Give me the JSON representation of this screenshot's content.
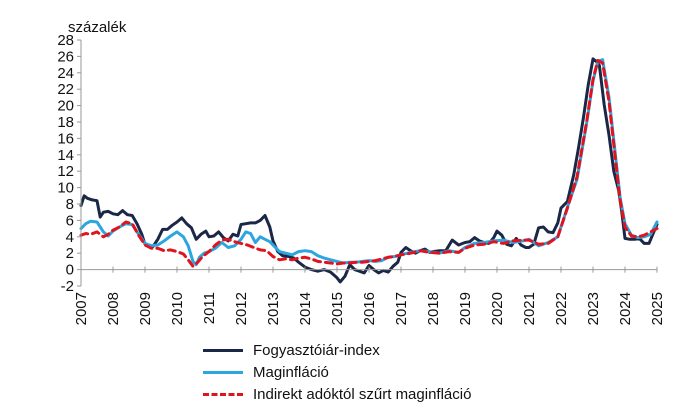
{
  "chart_data": {
    "type": "line",
    "ylabel": "százalék",
    "ylim": [
      -2,
      28
    ],
    "yticks": [
      "-2",
      "0",
      "2",
      "4",
      "6",
      "8",
      "10",
      "12",
      "14",
      "16",
      "18",
      "20",
      "22",
      "24",
      "26",
      "28"
    ],
    "xlim": [
      2007,
      2025
    ],
    "xticks": [
      "2007",
      "2008",
      "2009",
      "2010",
      "2011",
      "2012",
      "2013",
      "2014",
      "2015",
      "2016",
      "2017",
      "2018",
      "2019",
      "2020",
      "2021",
      "2022",
      "2023",
      "2024",
      "2025"
    ],
    "grid": false,
    "legend_position": "bottom",
    "series": [
      {
        "name": "Fogyasztóiár-index",
        "color": "#1b2747",
        "style": "solid",
        "x": [
          2007.0,
          2007.1,
          2007.2,
          2007.35,
          2007.5,
          2007.6,
          2007.7,
          2007.85,
          2008.0,
          2008.15,
          2008.3,
          2008.45,
          2008.6,
          2008.75,
          2008.9,
          2009.0,
          2009.1,
          2009.25,
          2009.4,
          2009.55,
          2009.7,
          2009.85,
          2010.0,
          2010.15,
          2010.3,
          2010.45,
          2010.6,
          2010.75,
          2010.9,
          2011.0,
          2011.15,
          2011.3,
          2011.45,
          2011.6,
          2011.75,
          2011.9,
          2012.0,
          2012.15,
          2012.3,
          2012.45,
          2012.6,
          2012.75,
          2012.9,
          2013.0,
          2013.15,
          2013.3,
          2013.5,
          2013.65,
          2013.8,
          2014.0,
          2014.2,
          2014.4,
          2014.6,
          2014.8,
          2015.0,
          2015.1,
          2015.25,
          2015.4,
          2015.55,
          2015.7,
          2015.85,
          2016.0,
          2016.15,
          2016.3,
          2016.45,
          2016.6,
          2016.75,
          2016.9,
          2017.0,
          2017.15,
          2017.3,
          2017.45,
          2017.6,
          2017.75,
          2017.9,
          2018.0,
          2018.2,
          2018.4,
          2018.6,
          2018.8,
          2019.0,
          2019.15,
          2019.3,
          2019.45,
          2019.6,
          2019.75,
          2019.9,
          2020.0,
          2020.15,
          2020.3,
          2020.45,
          2020.6,
          2020.75,
          2020.9,
          2021.0,
          2021.15,
          2021.3,
          2021.45,
          2021.6,
          2021.75,
          2021.9,
          2022.0,
          2022.2,
          2022.4,
          2022.55,
          2022.7,
          2022.85,
          2023.0,
          2023.1,
          2023.2,
          2023.35,
          2023.5,
          2023.65,
          2023.8,
          2023.9,
          2024.0,
          2024.15,
          2024.3,
          2024.45,
          2024.6,
          2024.75,
          2024.9,
          2025.0
        ],
        "y": [
          7.8,
          9.0,
          8.7,
          8.5,
          8.4,
          6.4,
          7.0,
          7.1,
          6.8,
          6.7,
          7.2,
          6.7,
          6.6,
          5.6,
          4.3,
          3.1,
          3.0,
          2.8,
          3.7,
          4.9,
          4.9,
          5.4,
          5.8,
          6.3,
          5.6,
          5.1,
          3.7,
          4.3,
          4.7,
          4.0,
          4.1,
          4.6,
          3.9,
          3.5,
          4.3,
          4.1,
          5.5,
          5.6,
          5.7,
          5.7,
          6.0,
          6.6,
          5.2,
          3.5,
          2.2,
          1.7,
          1.6,
          1.4,
          0.9,
          0.3,
          0.0,
          -0.2,
          0.0,
          -0.3,
          -1.0,
          -1.5,
          -0.8,
          0.6,
          0.0,
          -0.2,
          -0.4,
          0.5,
          0.0,
          -0.4,
          -0.1,
          -0.3,
          0.4,
          0.9,
          2.1,
          2.7,
          2.3,
          2.0,
          2.3,
          2.5,
          2.1,
          2.2,
          2.3,
          2.3,
          3.6,
          3.0,
          3.3,
          3.4,
          3.9,
          3.5,
          3.3,
          3.2,
          3.9,
          4.7,
          4.2,
          3.1,
          2.9,
          3.8,
          3.0,
          2.7,
          2.7,
          3.1,
          5.1,
          5.2,
          4.6,
          4.5,
          5.7,
          7.5,
          8.3,
          11.6,
          14.9,
          18.5,
          22.5,
          25.7,
          25.4,
          24.9,
          20.1,
          16.4,
          12.0,
          9.7,
          7.0,
          3.8,
          3.7,
          3.7,
          3.8,
          3.2,
          3.2,
          4.6,
          5.5
        ]
      },
      {
        "name": "Maginfláció",
        "color": "#2ba6e0",
        "style": "solid",
        "x": [
          2007.0,
          2007.15,
          2007.3,
          2007.5,
          2007.7,
          2007.85,
          2008.0,
          2008.2,
          2008.4,
          2008.6,
          2008.8,
          2009.0,
          2009.2,
          2009.4,
          2009.6,
          2009.8,
          2010.0,
          2010.2,
          2010.35,
          2010.5,
          2010.6,
          2010.7,
          2010.85,
          2011.0,
          2011.2,
          2011.4,
          2011.6,
          2011.8,
          2012.0,
          2012.15,
          2012.3,
          2012.45,
          2012.6,
          2012.75,
          2012.9,
          2013.0,
          2013.2,
          2013.4,
          2013.6,
          2013.8,
          2014.0,
          2014.2,
          2014.4,
          2014.6,
          2014.8,
          2015.0,
          2015.2,
          2015.4,
          2015.6,
          2015.8,
          2016.0,
          2016.2,
          2016.4,
          2016.6,
          2016.8,
          2017.0,
          2017.3,
          2017.6,
          2017.9,
          2018.2,
          2018.5,
          2018.8,
          2019.0,
          2019.3,
          2019.6,
          2019.9,
          2020.2,
          2020.5,
          2020.8,
          2021.0,
          2021.3,
          2021.6,
          2021.9,
          2022.2,
          2022.5,
          2022.8,
          2023.0,
          2023.15,
          2023.3,
          2023.5,
          2023.7,
          2023.85,
          2024.0,
          2024.2,
          2024.4,
          2024.6,
          2024.8,
          2025.0
        ],
        "y": [
          5.0,
          5.6,
          5.9,
          5.8,
          4.6,
          4.1,
          4.7,
          5.2,
          5.6,
          5.5,
          4.3,
          3.2,
          2.9,
          3.0,
          3.5,
          4.1,
          4.6,
          4.0,
          2.9,
          1.0,
          0.6,
          1.5,
          2.0,
          2.2,
          2.6,
          3.3,
          2.7,
          2.9,
          3.7,
          4.6,
          4.4,
          3.3,
          4.0,
          3.7,
          3.4,
          3.0,
          2.2,
          2.0,
          1.8,
          2.2,
          2.3,
          2.2,
          1.7,
          1.4,
          1.2,
          1.0,
          0.8,
          0.9,
          0.9,
          1.0,
          1.1,
          1.0,
          1.1,
          1.5,
          1.6,
          1.8,
          2.1,
          2.3,
          2.2,
          2.0,
          2.3,
          2.1,
          2.7,
          3.2,
          3.3,
          3.5,
          3.6,
          3.3,
          3.5,
          3.7,
          2.9,
          3.3,
          4.0,
          7.6,
          11.0,
          17.8,
          23.0,
          25.4,
          25.6,
          21.0,
          14.0,
          8.7,
          5.6,
          4.2,
          3.9,
          4.0,
          4.3,
          5.8
        ]
      },
      {
        "name": "Indirekt adóktól szűrt maginfláció",
        "color": "#e0141e",
        "style": "dashed",
        "x": [
          2007.0,
          2007.15,
          2007.3,
          2007.5,
          2007.7,
          2007.85,
          2008.0,
          2008.2,
          2008.4,
          2008.6,
          2008.8,
          2009.0,
          2009.2,
          2009.4,
          2009.6,
          2009.8,
          2010.0,
          2010.2,
          2010.35,
          2010.5,
          2010.65,
          2010.8,
          2011.0,
          2011.2,
          2011.4,
          2011.6,
          2011.8,
          2012.0,
          2012.2,
          2012.4,
          2012.6,
          2012.8,
          2013.0,
          2013.2,
          2013.4,
          2013.6,
          2013.8,
          2014.0,
          2014.2,
          2014.4,
          2014.6,
          2014.8,
          2015.0,
          2015.2,
          2015.4,
          2015.6,
          2015.8,
          2016.0,
          2016.2,
          2016.4,
          2016.6,
          2016.8,
          2017.0,
          2017.3,
          2017.6,
          2017.9,
          2018.2,
          2018.5,
          2018.8,
          2019.0,
          2019.3,
          2019.6,
          2019.9,
          2020.2,
          2020.5,
          2020.8,
          2021.0,
          2021.3,
          2021.6,
          2021.9,
          2022.2,
          2022.5,
          2022.8,
          2023.0,
          2023.15,
          2023.3,
          2023.5,
          2023.7,
          2023.85,
          2024.0,
          2024.2,
          2024.4,
          2024.6,
          2024.8,
          2025.0
        ],
        "y": [
          4.2,
          4.4,
          4.3,
          4.6,
          4.0,
          4.3,
          4.8,
          5.2,
          5.8,
          5.6,
          4.2,
          3.0,
          2.6,
          2.6,
          2.3,
          2.4,
          2.2,
          1.9,
          1.2,
          0.4,
          0.9,
          1.6,
          2.2,
          3.0,
          3.6,
          3.7,
          3.4,
          3.2,
          3.0,
          2.7,
          2.4,
          2.3,
          1.6,
          1.2,
          1.3,
          1.2,
          1.4,
          1.5,
          1.3,
          1.0,
          0.9,
          0.8,
          0.7,
          0.8,
          0.8,
          0.9,
          0.9,
          1.0,
          1.1,
          1.3,
          1.5,
          1.6,
          1.8,
          2.0,
          2.3,
          2.1,
          2.0,
          2.2,
          2.1,
          2.6,
          3.0,
          3.1,
          3.4,
          3.2,
          3.5,
          3.6,
          3.6,
          3.1,
          3.2,
          4.0,
          7.5,
          11.3,
          18.0,
          23.2,
          25.5,
          25.2,
          20.5,
          13.5,
          8.4,
          5.2,
          4.1,
          4.0,
          4.2,
          4.6,
          5.0
        ]
      }
    ]
  }
}
